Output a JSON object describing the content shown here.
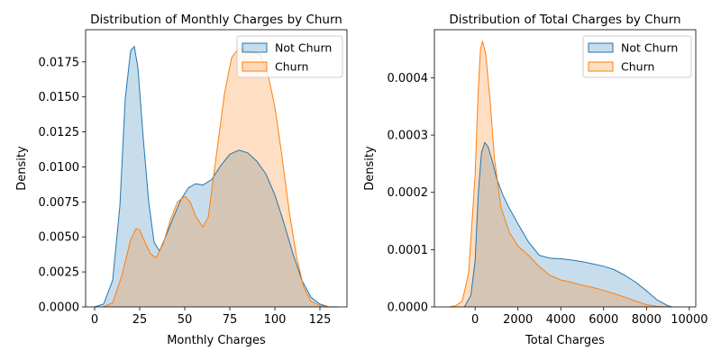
{
  "chart_data": [
    {
      "type": "area",
      "title": "Distribution of Monthly Charges by Churn",
      "xlabel": "Monthly Charges",
      "ylabel": "Density",
      "xlim": [
        -5,
        140
      ],
      "ylim": [
        0,
        0.0198
      ],
      "xticks": [
        0,
        25,
        50,
        75,
        100,
        125
      ],
      "yticks": [
        0.0,
        0.0025,
        0.005,
        0.0075,
        0.01,
        0.0125,
        0.015,
        0.0175
      ],
      "ytick_labels": [
        "0.0000",
        "0.0025",
        "0.0050",
        "0.0075",
        "0.0100",
        "0.0125",
        "0.0150",
        "0.0175"
      ],
      "legend_position": "top-right",
      "series": [
        {
          "name": "Not Churn",
          "color": "#1f77b4",
          "x": [
            0,
            5,
            10,
            14,
            17,
            20,
            22,
            24,
            27,
            30,
            33,
            36,
            40,
            44,
            48,
            52,
            56,
            60,
            65,
            70,
            75,
            80,
            85,
            90,
            95,
            100,
            105,
            110,
            115,
            120,
            125,
            130,
            135
          ],
          "values": [
            0.0,
            0.0002,
            0.0019,
            0.0072,
            0.0149,
            0.0183,
            0.0186,
            0.0171,
            0.012,
            0.0075,
            0.0046,
            0.004,
            0.0052,
            0.0065,
            0.0077,
            0.0085,
            0.0088,
            0.0087,
            0.0091,
            0.0101,
            0.0109,
            0.0112,
            0.011,
            0.0104,
            0.0095,
            0.008,
            0.006,
            0.0038,
            0.0019,
            0.0007,
            0.0002,
            0.0,
            0.0
          ]
        },
        {
          "name": "Churn",
          "color": "#ff7f0e",
          "x": [
            5,
            10,
            15,
            20,
            23,
            25,
            28,
            31,
            34,
            38,
            42,
            46,
            50,
            53,
            56,
            60,
            63,
            67,
            72,
            76,
            80,
            84,
            88,
            92,
            96,
            100,
            104,
            108,
            112,
            116,
            120,
            125,
            130
          ],
          "values": [
            0.0,
            0.0003,
            0.0022,
            0.0048,
            0.0056,
            0.0055,
            0.0046,
            0.0038,
            0.0035,
            0.0045,
            0.0062,
            0.0075,
            0.0079,
            0.0075,
            0.0065,
            0.0057,
            0.0064,
            0.0103,
            0.0152,
            0.0178,
            0.0185,
            0.0183,
            0.0182,
            0.018,
            0.0167,
            0.0143,
            0.0107,
            0.0068,
            0.0036,
            0.0014,
            0.0004,
            0.0001,
            0.0
          ]
        }
      ]
    },
    {
      "type": "area",
      "title": "Distribution of Total Charges by Churn",
      "xlabel": "Total Charges",
      "ylabel": "Density",
      "xlim": [
        -1900,
        10300
      ],
      "ylim": [
        0,
        0.000484
      ],
      "xticks": [
        0,
        2000,
        4000,
        6000,
        8000,
        10000
      ],
      "yticks": [
        0.0,
        0.0001,
        0.0002,
        0.0003,
        0.0004
      ],
      "ytick_labels": [
        "0.0000",
        "0.0001",
        "0.0002",
        "0.0003",
        "0.0004"
      ],
      "legend_position": "top-right",
      "series": [
        {
          "name": "Not Churn",
          "color": "#1f77b4",
          "x": [
            -500,
            -200,
            0,
            150,
            300,
            450,
            600,
            800,
            1000,
            1300,
            1600,
            2000,
            2500,
            3000,
            3500,
            4000,
            4500,
            5000,
            5500,
            6000,
            6500,
            7000,
            7500,
            8000,
            8500,
            9000,
            9200
          ],
          "values": [
            0.0,
            2e-05,
            8e-05,
            0.0002,
            0.00027,
            0.000287,
            0.00028,
            0.000255,
            0.000225,
            0.000195,
            0.000172,
            0.000145,
            0.000113,
            9e-05,
            8.5e-05,
            8.4e-05,
            8.2e-05,
            7.9e-05,
            7.5e-05,
            7.1e-05,
            6.5e-05,
            5.5e-05,
            4.3e-05,
            2.8e-05,
            1.2e-05,
            2e-06,
            0.0
          ]
        },
        {
          "name": "Churn",
          "color": "#ff7f0e",
          "x": [
            -1200,
            -900,
            -600,
            -300,
            0,
            150,
            250,
            350,
            500,
            700,
            900,
            1200,
            1600,
            2000,
            2500,
            3000,
            3500,
            4000,
            4500,
            5000,
            5500,
            6000,
            6500,
            7000,
            7500,
            8000,
            8500,
            9000
          ],
          "values": [
            0.0,
            2e-06,
            1e-05,
            6e-05,
            0.00023,
            0.00038,
            0.00045,
            0.000464,
            0.00044,
            0.00036,
            0.00026,
            0.000175,
            0.00013,
            0.000106,
            9e-05,
            7e-05,
            5.5e-05,
            4.7e-05,
            4.3e-05,
            3.8e-05,
            3.4e-05,
            2.9e-05,
            2.3e-05,
            1.7e-05,
            1e-05,
            4e-06,
            1e-06,
            0.0
          ]
        }
      ]
    }
  ]
}
